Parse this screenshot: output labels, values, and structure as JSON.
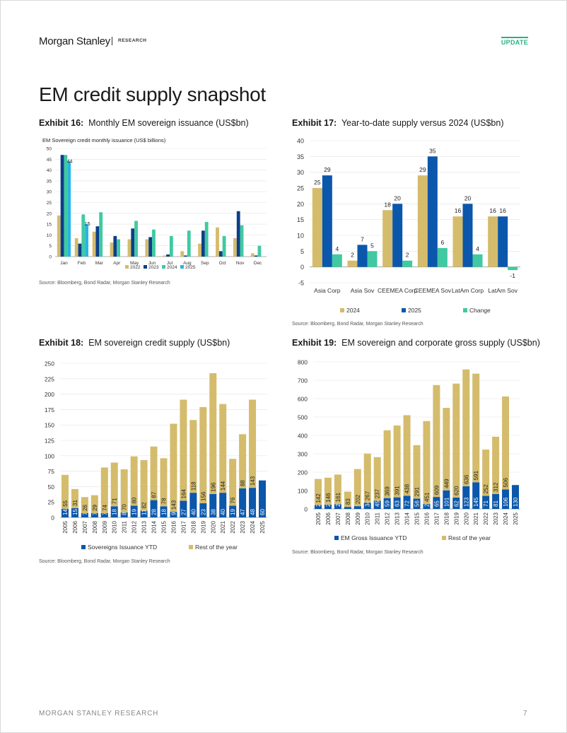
{
  "header": {
    "logo": "Morgan Stanley",
    "section": "RESEARCH",
    "badge": "UPDATE"
  },
  "page_title": "EM credit supply snapshot",
  "footer": {
    "left": "MORGAN STANLEY RESEARCH",
    "page": "7"
  },
  "colors": {
    "gold": "#d4bc6c",
    "blue": "#0b57ab",
    "navy": "#0c3f8a",
    "teal": "#40c9a2",
    "cyan": "#27b5e6"
  },
  "exhibits": [
    {
      "label": "Exhibit 16:",
      "title": "Monthly EM sovereign issuance (US$bn)",
      "source": "Source: Bloomberg, Bond Radar, Morgan Stanley Research"
    },
    {
      "label": "Exhibit 17:",
      "title": "Year-to-date supply versus 2024 (US$bn)",
      "source": "Source: Bloomberg, Bond Radar, Morgan Stanley Research"
    },
    {
      "label": "Exhibit 18:",
      "title": "EM sovereign credit supply (US$bn)",
      "source": "Source: Bloomberg, Bond Radar, Morgan Stanley Research"
    },
    {
      "label": "Exhibit 19:",
      "title": "EM sovereign and corporate gross supply (US$bn)",
      "source": "Source: Bloomberg, Bond Radar, Morgan Stanley Research"
    }
  ],
  "chart_data": [
    {
      "type": "bar",
      "title": "EM Sovereign credit monthly issuance (US$ billions)",
      "categories": [
        "Jan",
        "Feb",
        "Mar",
        "Apr",
        "May",
        "Jun",
        "Jul",
        "Aug",
        "Sep",
        "Oct",
        "Nov",
        "Dec"
      ],
      "ylim": [
        0,
        50
      ],
      "yticks": [
        0,
        5,
        10,
        15,
        20,
        25,
        30,
        35,
        40,
        45,
        50
      ],
      "legend_position": "bottom",
      "series": [
        {
          "name": "2022",
          "color": "#d4bc6c",
          "values": [
            19,
            8.5,
            11.5,
            6.5,
            8,
            8,
            0.5,
            2.5,
            6,
            13.5,
            8.5,
            1.5
          ]
        },
        {
          "name": "2023",
          "color": "#0c3f8a",
          "values": [
            47,
            6,
            14,
            9.5,
            13,
            9,
            1,
            0.5,
            12,
            2.5,
            21,
            0.5
          ]
        },
        {
          "name": "2024",
          "color": "#40c9a2",
          "values": [
            47,
            19.5,
            20.5,
            8,
            16.5,
            12.5,
            9.5,
            12,
            16,
            9.5,
            14.5,
            5
          ]
        },
        {
          "name": "2025",
          "color": "#27b5e6",
          "values": [
            44,
            15,
            null,
            null,
            null,
            null,
            null,
            null,
            null,
            null,
            null,
            null
          ]
        }
      ],
      "data_labels": [
        {
          "series": "2025",
          "category": "Jan",
          "text": "44"
        },
        {
          "series": "2025",
          "category": "Feb",
          "text": "15"
        }
      ]
    },
    {
      "type": "bar",
      "categories": [
        "Asia Corp",
        "Asia Sov",
        "CEEMEA Corp",
        "CEEMEA Sov",
        "LatAm Corp",
        "LatAm Sov"
      ],
      "ylim": [
        -5,
        40
      ],
      "yticks": [
        -5,
        0,
        5,
        10,
        15,
        20,
        25,
        30,
        35,
        40
      ],
      "legend_position": "bottom",
      "series": [
        {
          "name": "2024",
          "color": "#d4bc6c",
          "values": [
            25,
            2,
            18,
            29,
            16,
            16
          ],
          "labels": [
            "25",
            "2",
            "18",
            "29",
            "16",
            "16"
          ]
        },
        {
          "name": "2025",
          "color": "#0b57ab",
          "values": [
            29,
            7,
            20,
            35,
            20,
            16
          ],
          "labels": [
            "29",
            "7",
            "20",
            "35",
            "20",
            "16"
          ]
        },
        {
          "name": "Change",
          "color": "#40c9a2",
          "values": [
            4,
            5,
            2,
            6,
            4,
            -1
          ],
          "labels": [
            "4",
            "5",
            "2",
            "6",
            "4",
            "-1"
          ]
        }
      ]
    },
    {
      "type": "bar",
      "stacked": true,
      "categories": [
        "2005",
        "2006",
        "2007",
        "2008",
        "2009",
        "2010",
        "2011",
        "2012",
        "2013",
        "2014",
        "2015",
        "2016",
        "2017",
        "2018",
        "2019",
        "2020",
        "2021",
        "2022",
        "2023",
        "2024",
        "2025"
      ],
      "ylim": [
        0,
        250
      ],
      "yticks": [
        0,
        25,
        50,
        75,
        100,
        125,
        150,
        175,
        200,
        225,
        250
      ],
      "legend_position": "bottom",
      "series": [
        {
          "name": "Sovereigns Issuance YTD",
          "color": "#0b57ab",
          "values": [
            14,
            15,
            7,
            7,
            7,
            18,
            8,
            19,
            11,
            28,
            18,
            9,
            27,
            40,
            23,
            38,
            40,
            19,
            47,
            48,
            60
          ]
        },
        {
          "name": "Rest of the year",
          "color": "#d4bc6c",
          "values": [
            55,
            31,
            26,
            29,
            74,
            71,
            70,
            80,
            82,
            87,
            78,
            143,
            164,
            118,
            156,
            196,
            144,
            76,
            88,
            143,
            null
          ]
        }
      ]
    },
    {
      "type": "bar",
      "stacked": true,
      "categories": [
        "2005",
        "2006",
        "2007",
        "2008",
        "2009",
        "2010",
        "2011",
        "2012",
        "2013",
        "2014",
        "2015",
        "2016",
        "2017",
        "2018",
        "2019",
        "2020",
        "2021",
        "2022",
        "2023",
        "2024",
        "2025"
      ],
      "ylim": [
        0,
        800
      ],
      "yticks": [
        0,
        100,
        200,
        300,
        400,
        500,
        600,
        700,
        800
      ],
      "legend_position": "bottom",
      "series": [
        {
          "name": "EM Gross Issuance YTD",
          "color": "#0b57ab",
          "values": [
            21,
            24,
            26,
            11,
            15,
            34,
            45,
            59,
            63,
            72,
            56,
            27,
            65,
            101,
            62,
            123,
            145,
            71,
            81,
            106,
            130
          ]
        },
        {
          "name": "Rest of the year",
          "color": "#d4bc6c",
          "values": [
            142,
            146,
            161,
            83,
            202,
            267,
            237,
            369,
            391,
            438,
            291,
            451,
            609,
            449,
            620,
            636,
            591,
            252,
            312,
            506,
            null
          ]
        }
      ]
    }
  ]
}
